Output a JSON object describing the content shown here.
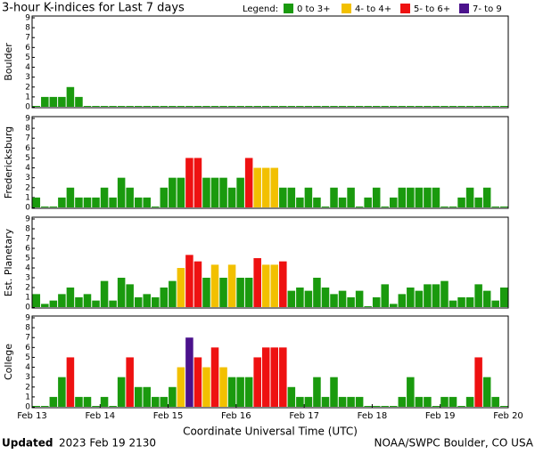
{
  "header": {
    "title": "3-hour K-indices for Last 7 days",
    "legend_title": "Legend:",
    "legend": [
      {
        "label": "0 to 3+",
        "color": "#1a9a0e",
        "min": 0
      },
      {
        "label": "4- to 4+",
        "color": "#f2c000",
        "min": 3.67
      },
      {
        "label": "5- to 6+",
        "color": "#ee1111",
        "min": 4.67
      },
      {
        "label": "7- to 9",
        "color": "#4b128c",
        "min": 6.67
      }
    ]
  },
  "chart_data": [
    {
      "type": "bar",
      "ylabel": "Boulder",
      "ylim": [
        0,
        9
      ],
      "yticks": [
        0,
        1,
        2,
        3,
        4,
        5,
        6,
        7,
        8,
        9
      ],
      "values": [
        0,
        1,
        1,
        1,
        2,
        1,
        0,
        0,
        0,
        0,
        0,
        0,
        0,
        0,
        0,
        0,
        0,
        0,
        0,
        0,
        0,
        0,
        0,
        0,
        0,
        0,
        0,
        0,
        0,
        0,
        0,
        0,
        0,
        0,
        0,
        0,
        0,
        0,
        0,
        0,
        0,
        0,
        0,
        0,
        0,
        0,
        0,
        0,
        0,
        0,
        0,
        0,
        0,
        0,
        0,
        0
      ]
    },
    {
      "type": "bar",
      "ylabel": "Fredericksburg",
      "ylim": [
        0,
        9
      ],
      "yticks": [
        0,
        1,
        2,
        3,
        4,
        5,
        6,
        7,
        8,
        9
      ],
      "values": [
        1,
        0,
        0,
        1,
        2,
        1,
        1,
        1,
        2,
        1,
        3,
        2,
        1,
        1,
        0,
        2,
        3,
        3,
        5,
        5,
        3,
        3,
        3,
        2,
        3,
        5,
        4,
        4,
        4,
        2,
        2,
        1,
        2,
        1,
        0,
        2,
        1,
        2,
        0,
        1,
        2,
        0,
        1,
        2,
        2,
        2,
        2,
        2,
        0,
        0,
        1,
        2,
        1,
        2,
        0,
        0
      ]
    },
    {
      "type": "bar",
      "ylabel": "Est. Planetary",
      "ylim": [
        0,
        9
      ],
      "yticks": [
        0,
        1,
        2,
        3,
        4,
        5,
        6,
        7,
        8,
        9
      ],
      "values": [
        1.33,
        0.33,
        0.67,
        1.33,
        2,
        1,
        1.33,
        0.67,
        2.67,
        0.67,
        3,
        2.33,
        1,
        1.33,
        1,
        2,
        2.67,
        4,
        5.33,
        4.67,
        3,
        4.33,
        3,
        4.33,
        3,
        3,
        5,
        4.33,
        4.33,
        4.67,
        1.67,
        2,
        1.67,
        3,
        2,
        1.33,
        1.67,
        1,
        1.67,
        0,
        1,
        2.33,
        0.33,
        1.33,
        2,
        1.67,
        2.33,
        2.33,
        2.67,
        0.67,
        1,
        1,
        2.33,
        1.67,
        0.67,
        2
      ]
    },
    {
      "type": "bar",
      "ylabel": "College",
      "ylim": [
        0,
        9
      ],
      "yticks": [
        0,
        1,
        2,
        3,
        4,
        5,
        6,
        7,
        8,
        9
      ],
      "values": [
        0,
        0,
        1,
        3,
        5,
        1,
        1,
        0,
        1,
        0,
        3,
        5,
        2,
        2,
        1,
        1,
        2,
        4,
        7,
        5,
        4,
        6,
        4,
        3,
        3,
        3,
        5,
        6,
        6,
        6,
        2,
        1,
        1,
        3,
        1,
        3,
        1,
        1,
        1,
        0,
        0,
        0,
        0,
        1,
        3,
        1,
        1,
        0,
        1,
        1,
        0,
        1,
        5,
        3,
        1,
        0
      ],
      "xlim": [
        0,
        56
      ],
      "xticks": [
        {
          "value": 0,
          "label": "Feb 13"
        },
        {
          "value": 8,
          "label": "Feb 14"
        },
        {
          "value": 16,
          "label": "Feb 15"
        },
        {
          "value": 24,
          "label": "Feb 16"
        },
        {
          "value": 32,
          "label": "Feb 17"
        },
        {
          "value": 40,
          "label": "Feb 18"
        },
        {
          "value": 48,
          "label": "Feb 19"
        },
        {
          "value": 56,
          "label": "Feb 20"
        }
      ],
      "xlabel": "Coordinate Universal Time (UTC)"
    }
  ],
  "footer": {
    "updated_label": "Updated",
    "updated": "2023 Feb 19 2130",
    "source": "NOAA/SWPC Boulder, CO USA"
  }
}
